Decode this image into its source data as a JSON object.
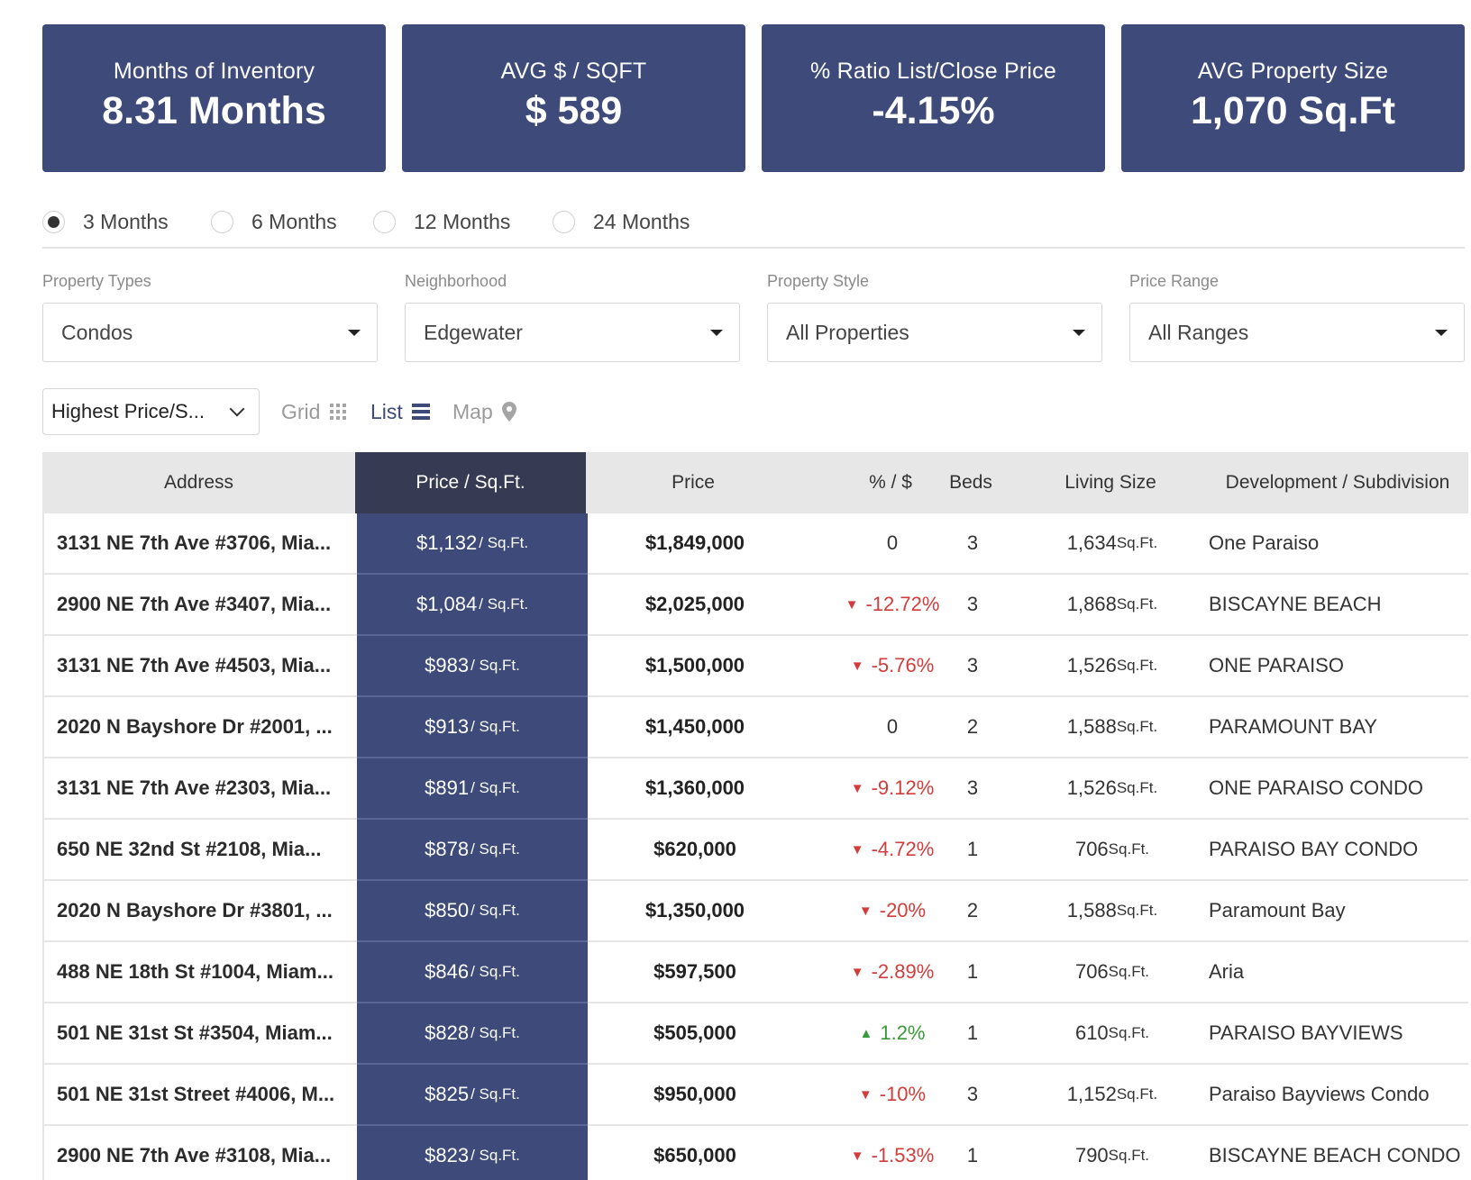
{
  "stats": [
    {
      "label": "Months of Inventory",
      "value": "8.31 Months"
    },
    {
      "label": "AVG $ / SQFT",
      "value": "$ 589"
    },
    {
      "label": "% Ratio List/Close Price",
      "value": "-4.15%"
    },
    {
      "label": "AVG Property Size",
      "value": "1,070 Sq.Ft"
    }
  ],
  "periods": [
    {
      "label": "3 Months",
      "selected": true
    },
    {
      "label": "6 Months",
      "selected": false
    },
    {
      "label": "12 Months",
      "selected": false
    },
    {
      "label": "24 Months",
      "selected": false
    }
  ],
  "filters": [
    {
      "label": "Property Types",
      "value": "Condos"
    },
    {
      "label": "Neighborhood",
      "value": "Edgewater"
    },
    {
      "label": "Property Style",
      "value": "All Properties"
    },
    {
      "label": "Price Range",
      "value": "All Ranges"
    }
  ],
  "toolbar": {
    "sort_value": "Highest Price/S...",
    "views": [
      {
        "label": "Grid",
        "icon": "grid-icon",
        "active": false
      },
      {
        "label": "List",
        "icon": "list-icon",
        "active": true
      },
      {
        "label": "Map",
        "icon": "map-pin-icon",
        "active": false
      }
    ]
  },
  "table": {
    "columns": [
      "Address",
      "Price / Sq.Ft.",
      "Price",
      "% / $",
      "Beds",
      "Living Size",
      "Development / Subdivision"
    ],
    "ppsf_unit": "/ Sq.Ft.",
    "size_unit": "Sq.Ft.",
    "rows": [
      {
        "address": "3131 NE 7th Ave #3706, Mia...",
        "ppsf": "$1,132",
        "price": "$1,849,000",
        "pct": "0",
        "trend": "none",
        "beds": "3",
        "size": "1,634",
        "dev": "One Paraiso"
      },
      {
        "address": "2900 NE 7th Ave #3407, Mia...",
        "ppsf": "$1,084",
        "price": "$2,025,000",
        "pct": "-12.72%",
        "trend": "down",
        "beds": "3",
        "size": "1,868",
        "dev": "BISCAYNE BEACH"
      },
      {
        "address": "3131 NE 7th Ave #4503, Mia...",
        "ppsf": "$983",
        "price": "$1,500,000",
        "pct": "-5.76%",
        "trend": "down",
        "beds": "3",
        "size": "1,526",
        "dev": "ONE PARAISO"
      },
      {
        "address": "2020 N Bayshore Dr #2001, ...",
        "ppsf": "$913",
        "price": "$1,450,000",
        "pct": "0",
        "trend": "none",
        "beds": "2",
        "size": "1,588",
        "dev": "PARAMOUNT BAY"
      },
      {
        "address": "3131 NE 7th Ave #2303, Mia...",
        "ppsf": "$891",
        "price": "$1,360,000",
        "pct": "-9.12%",
        "trend": "down",
        "beds": "3",
        "size": "1,526",
        "dev": "ONE PARAISO CONDO"
      },
      {
        "address": "650 NE 32nd St #2108, Mia...",
        "ppsf": "$878",
        "price": "$620,000",
        "pct": "-4.72%",
        "trend": "down",
        "beds": "1",
        "size": "706",
        "dev": "PARAISO BAY CONDO"
      },
      {
        "address": "2020 N Bayshore Dr #3801, ...",
        "ppsf": "$850",
        "price": "$1,350,000",
        "pct": "-20%",
        "trend": "down",
        "beds": "2",
        "size": "1,588",
        "dev": "Paramount Bay"
      },
      {
        "address": "488 NE 18th St #1004, Miam...",
        "ppsf": "$846",
        "price": "$597,500",
        "pct": "-2.89%",
        "trend": "down",
        "beds": "1",
        "size": "706",
        "dev": "Aria"
      },
      {
        "address": "501 NE 31st St #3504, Miam...",
        "ppsf": "$828",
        "price": "$505,000",
        "pct": "1.2%",
        "trend": "up",
        "beds": "1",
        "size": "610",
        "dev": "PARAISO BAYVIEWS"
      },
      {
        "address": "501 NE 31st Street #4006, M...",
        "ppsf": "$825",
        "price": "$950,000",
        "pct": "-10%",
        "trend": "down",
        "beds": "3",
        "size": "1,152",
        "dev": "Paraiso Bayviews Condo"
      },
      {
        "address": "2900 NE 7th Ave #3108, Mia...",
        "ppsf": "$823",
        "price": "$650,000",
        "pct": "-1.53%",
        "trend": "down",
        "beds": "1",
        "size": "790",
        "dev": "BISCAYNE BEACH CONDO"
      }
    ]
  }
}
